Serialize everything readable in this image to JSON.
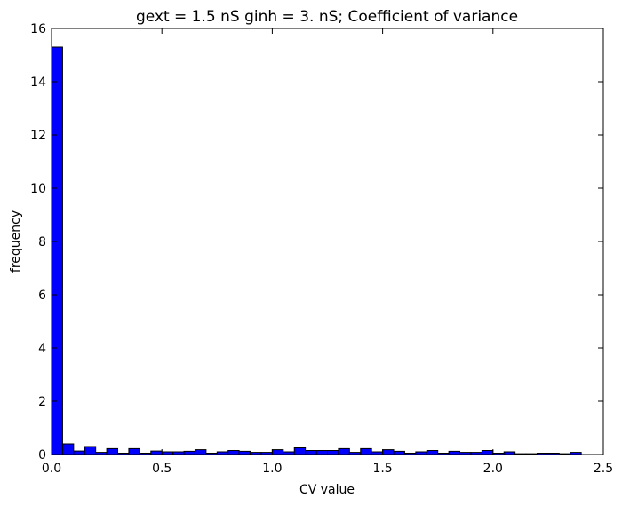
{
  "chart_data": {
    "type": "bar",
    "title": "gext = 1.5 nS ginh = 3. nS; Coefficient of variance",
    "xlabel": "CV value",
    "ylabel": "frequency",
    "xlim": [
      0.0,
      2.5
    ],
    "ylim": [
      0,
      16
    ],
    "x_ticks": [
      "0.0",
      "0.5",
      "1.0",
      "1.5",
      "2.0",
      "2.5"
    ],
    "y_ticks": [
      "0",
      "2",
      "4",
      "6",
      "8",
      "10",
      "12",
      "14",
      "16"
    ],
    "bar_color": "#0000ff",
    "bin_width": 0.05,
    "bin_starts": [
      0.0,
      0.05,
      0.1,
      0.15,
      0.2,
      0.25,
      0.3,
      0.35,
      0.4,
      0.45,
      0.5,
      0.55,
      0.6,
      0.65,
      0.7,
      0.75,
      0.8,
      0.85,
      0.9,
      0.95,
      1.0,
      1.05,
      1.1,
      1.15,
      1.2,
      1.25,
      1.3,
      1.35,
      1.4,
      1.45,
      1.5,
      1.55,
      1.6,
      1.65,
      1.7,
      1.75,
      1.8,
      1.85,
      1.9,
      1.95,
      2.0,
      2.05,
      2.1,
      2.15,
      2.2,
      2.25,
      2.3,
      2.35
    ],
    "values": [
      15.3,
      0.4,
      0.13,
      0.3,
      0.08,
      0.22,
      0.05,
      0.22,
      0.05,
      0.13,
      0.1,
      0.1,
      0.12,
      0.18,
      0.05,
      0.1,
      0.15,
      0.12,
      0.08,
      0.08,
      0.18,
      0.1,
      0.25,
      0.15,
      0.15,
      0.15,
      0.22,
      0.08,
      0.22,
      0.1,
      0.18,
      0.12,
      0.05,
      0.1,
      0.15,
      0.05,
      0.12,
      0.08,
      0.08,
      0.15,
      0.05,
      0.1,
      0.03,
      0.03,
      0.05,
      0.05,
      0.03,
      0.08
    ]
  }
}
